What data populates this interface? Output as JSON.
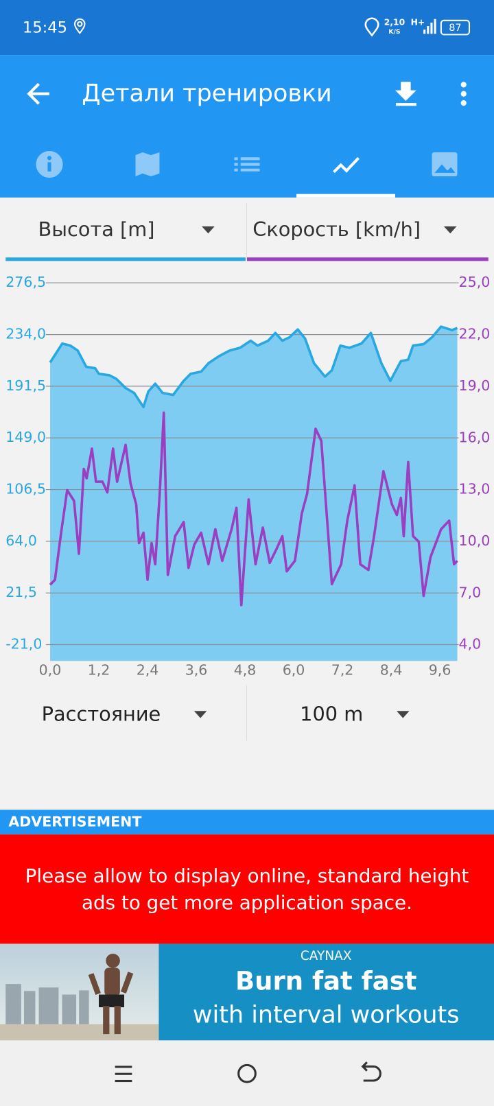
{
  "status_bar": {
    "time": "15:45",
    "net_speed": "2,10",
    "net_unit": "K/S",
    "network": "H+",
    "battery": "87"
  },
  "app_bar": {
    "title": "Детали тренировки"
  },
  "selectors": {
    "x_axis": "Расстояние",
    "interval": "100 m"
  },
  "chart_data": {
    "type": "line",
    "xlim": [
      0,
      10.03
    ],
    "xticks": [
      {
        "value": 0,
        "label": "0,0"
      },
      {
        "value": 1.2,
        "label": "1,2"
      },
      {
        "value": 2.4,
        "label": "2,4"
      },
      {
        "value": 3.6,
        "label": "3,6"
      },
      {
        "value": 4.8,
        "label": "4,8"
      },
      {
        "value": 6.0,
        "label": "6,0"
      },
      {
        "value": 7.2,
        "label": "7,2"
      },
      {
        "value": 8.4,
        "label": "8,4"
      },
      {
        "value": 9.6,
        "label": "9,6"
      }
    ],
    "ylim": [
      -34.4,
      276.5
    ],
    "yticks": [
      {
        "value": -21,
        "label": "-21,0"
      },
      {
        "value": 21.5,
        "label": "21,5"
      },
      {
        "value": 64,
        "label": "64,0"
      },
      {
        "value": 106.5,
        "label": "106,5"
      },
      {
        "value": 149,
        "label": "149,0"
      },
      {
        "value": 191.5,
        "label": "191,5"
      },
      {
        "value": 234,
        "label": "234,0"
      },
      {
        "value": 276.5,
        "label": "276,5"
      }
    ],
    "y2lim": [
      3.06,
      25
    ],
    "y2ticks": [
      {
        "value": 4,
        "label": "4,0"
      },
      {
        "value": 7,
        "label": "7,0"
      },
      {
        "value": 10,
        "label": "10,0"
      },
      {
        "value": 13,
        "label": "13,0"
      },
      {
        "value": 16,
        "label": "16,0"
      },
      {
        "value": 19,
        "label": "19,0"
      },
      {
        "value": 22,
        "label": "22,0"
      },
      {
        "value": 25,
        "label": "25,0"
      }
    ],
    "grid": true,
    "series": [
      {
        "name": "Высота [m]",
        "color": "#29a7e1",
        "fill": "#7fccf3",
        "axis": "y",
        "x": [
          0,
          0.3,
          0.5,
          0.68,
          0.89,
          1.11,
          1.2,
          1.46,
          1.63,
          1.86,
          2.07,
          2.16,
          2.3,
          2.42,
          2.59,
          2.77,
          3.03,
          3.29,
          3.46,
          3.72,
          3.9,
          4.16,
          4.42,
          4.68,
          4.94,
          5.11,
          5.37,
          5.55,
          5.72,
          5.9,
          6.1,
          6.28,
          6.5,
          6.77,
          6.94,
          7.15,
          7.37,
          7.67,
          7.9,
          8.16,
          8.38,
          8.64,
          8.82,
          8.94,
          9.2,
          9.41,
          9.63,
          9.9,
          10.03
        ],
        "values": [
          211,
          226.6,
          224.9,
          220.8,
          207.5,
          206.3,
          201.7,
          200.5,
          197.6,
          190,
          186,
          181.4,
          174.4,
          187.2,
          193.6,
          186,
          184.3,
          195.9,
          201.7,
          203.5,
          210.4,
          216.2,
          220.8,
          223.1,
          228.9,
          224.9,
          228.9,
          235.3,
          228.9,
          231.8,
          238.2,
          230.7,
          210.4,
          199.4,
          204.6,
          224.9,
          223.1,
          226.6,
          235.3,
          210.4,
          195.9,
          212.1,
          213.3,
          224.9,
          226.1,
          231.8,
          240.5,
          237.6,
          239.4
        ]
      },
      {
        "name": "Скорость [km/h]",
        "color": "#9a3fc0",
        "axis": "y2",
        "x": [
          0,
          0.12,
          0.26,
          0.42,
          0.59,
          0.71,
          0.83,
          0.9,
          1.03,
          1.13,
          1.29,
          1.41,
          1.55,
          1.65,
          1.86,
          1.98,
          2.12,
          2.19,
          2.3,
          2.4,
          2.5,
          2.59,
          2.7,
          2.8,
          2.9,
          3.08,
          3.29,
          3.41,
          3.55,
          3.72,
          3.9,
          4.07,
          4.24,
          4.47,
          4.59,
          4.71,
          4.89,
          5.06,
          5.24,
          5.41,
          5.58,
          5.72,
          5.83,
          6.03,
          6.2,
          6.33,
          6.54,
          6.68,
          6.94,
          7.17,
          7.32,
          7.5,
          7.64,
          7.84,
          7.98,
          8.21,
          8.42,
          8.54,
          8.64,
          8.71,
          8.82,
          8.94,
          9.08,
          9.2,
          9.37,
          9.63,
          9.83,
          9.95,
          10.03
        ],
        "values": [
          7.48,
          7.77,
          10.3,
          12.97,
          12.35,
          9.28,
          14.2,
          13.66,
          15.38,
          13.46,
          13.46,
          12.84,
          15.38,
          13.46,
          15.6,
          13.37,
          12.15,
          9.9,
          10.5,
          7.77,
          9.9,
          8.67,
          12.76,
          17.47,
          8.05,
          10.3,
          11.12,
          8.46,
          9.8,
          10.5,
          8.67,
          10.7,
          8.87,
          10.7,
          11.94,
          6.3,
          12.43,
          8.67,
          10.8,
          8.75,
          9.57,
          10.3,
          8.26,
          8.87,
          11.62,
          12.76,
          16.53,
          15.83,
          7.52,
          8.67,
          11.2,
          13.25,
          8.67,
          8.34,
          10.3,
          14.07,
          12.15,
          11.53,
          12.52,
          10.3,
          14.6,
          10.3,
          9.98,
          6.83,
          9.08,
          10.7,
          11.2,
          8.67,
          8.87
        ]
      }
    ]
  },
  "advertisement": {
    "label": "ADVERTISEMENT",
    "notice_line1": "Please allow to display online, standard height",
    "notice_line2": "ads to get more application space.",
    "brand": "CAYNAX",
    "headline": "Burn fat fast",
    "tagline": "with interval workouts"
  }
}
